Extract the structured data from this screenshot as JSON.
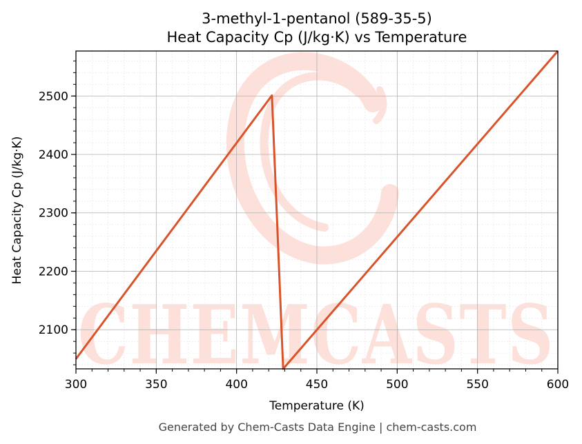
{
  "chart_data": {
    "type": "line",
    "title_line1": "3-methyl-1-pentanol (589-35-5)",
    "title_line2": "Heat Capacity Cp (J/kg·K) vs Temperature",
    "xlabel": "Temperature (K)",
    "ylabel": "Heat Capacity Cp (J/kg·K)",
    "xlim": [
      300,
      600
    ],
    "ylim": [
      2033,
      2577
    ],
    "xticks": [
      300,
      350,
      400,
      450,
      500,
      550,
      600
    ],
    "yticks": [
      2100,
      2200,
      2300,
      2400,
      2500
    ],
    "grid": true,
    "series": [
      {
        "color": "#d9532a",
        "x": [
          300,
          422,
          429,
          600
        ],
        "y": [
          2050,
          2501,
          2033,
          2577
        ]
      }
    ]
  },
  "watermark": {
    "text": "CHEMCASTS",
    "color": "#fde0da"
  },
  "footer": "Generated by Chem-Casts Data Engine | chem-casts.com"
}
